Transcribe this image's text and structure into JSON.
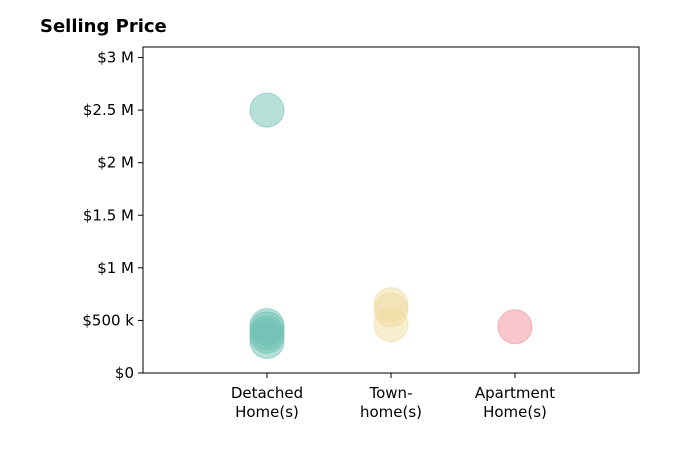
{
  "chart_data": {
    "type": "scatter",
    "title": "Selling Price",
    "xlabel": "",
    "ylabel": "",
    "categories": [
      {
        "key": "detached",
        "label": [
          "Detached",
          "Home(s)"
        ],
        "color": "#6fc2b4"
      },
      {
        "key": "town",
        "label": [
          "Town-",
          "home(s)"
        ],
        "color": "#f0dca0"
      },
      {
        "key": "apartment",
        "label": [
          "Apartment",
          "Home(s)"
        ],
        "color": "#f08f98"
      }
    ],
    "series": [
      {
        "category": "detached",
        "values": [
          2500000,
          450000,
          420000,
          380000,
          350000,
          300000
        ]
      },
      {
        "category": "town",
        "values": [
          650000,
          600000,
          460000
        ]
      },
      {
        "category": "apartment",
        "values": [
          440000
        ]
      }
    ],
    "ylim": [
      0,
      3100000
    ],
    "yticks": [
      {
        "value": 0,
        "label": "$0"
      },
      {
        "value": 500000,
        "label": "$500 k"
      },
      {
        "value": 1000000,
        "label": "$1 M"
      },
      {
        "value": 1500000,
        "label": "$1.5 M"
      },
      {
        "value": 2000000,
        "label": "$2 M"
      },
      {
        "value": 2500000,
        "label": "$2.5 M"
      },
      {
        "value": 3000000,
        "label": "$3 M"
      }
    ],
    "grid": false,
    "legend": "none"
  }
}
